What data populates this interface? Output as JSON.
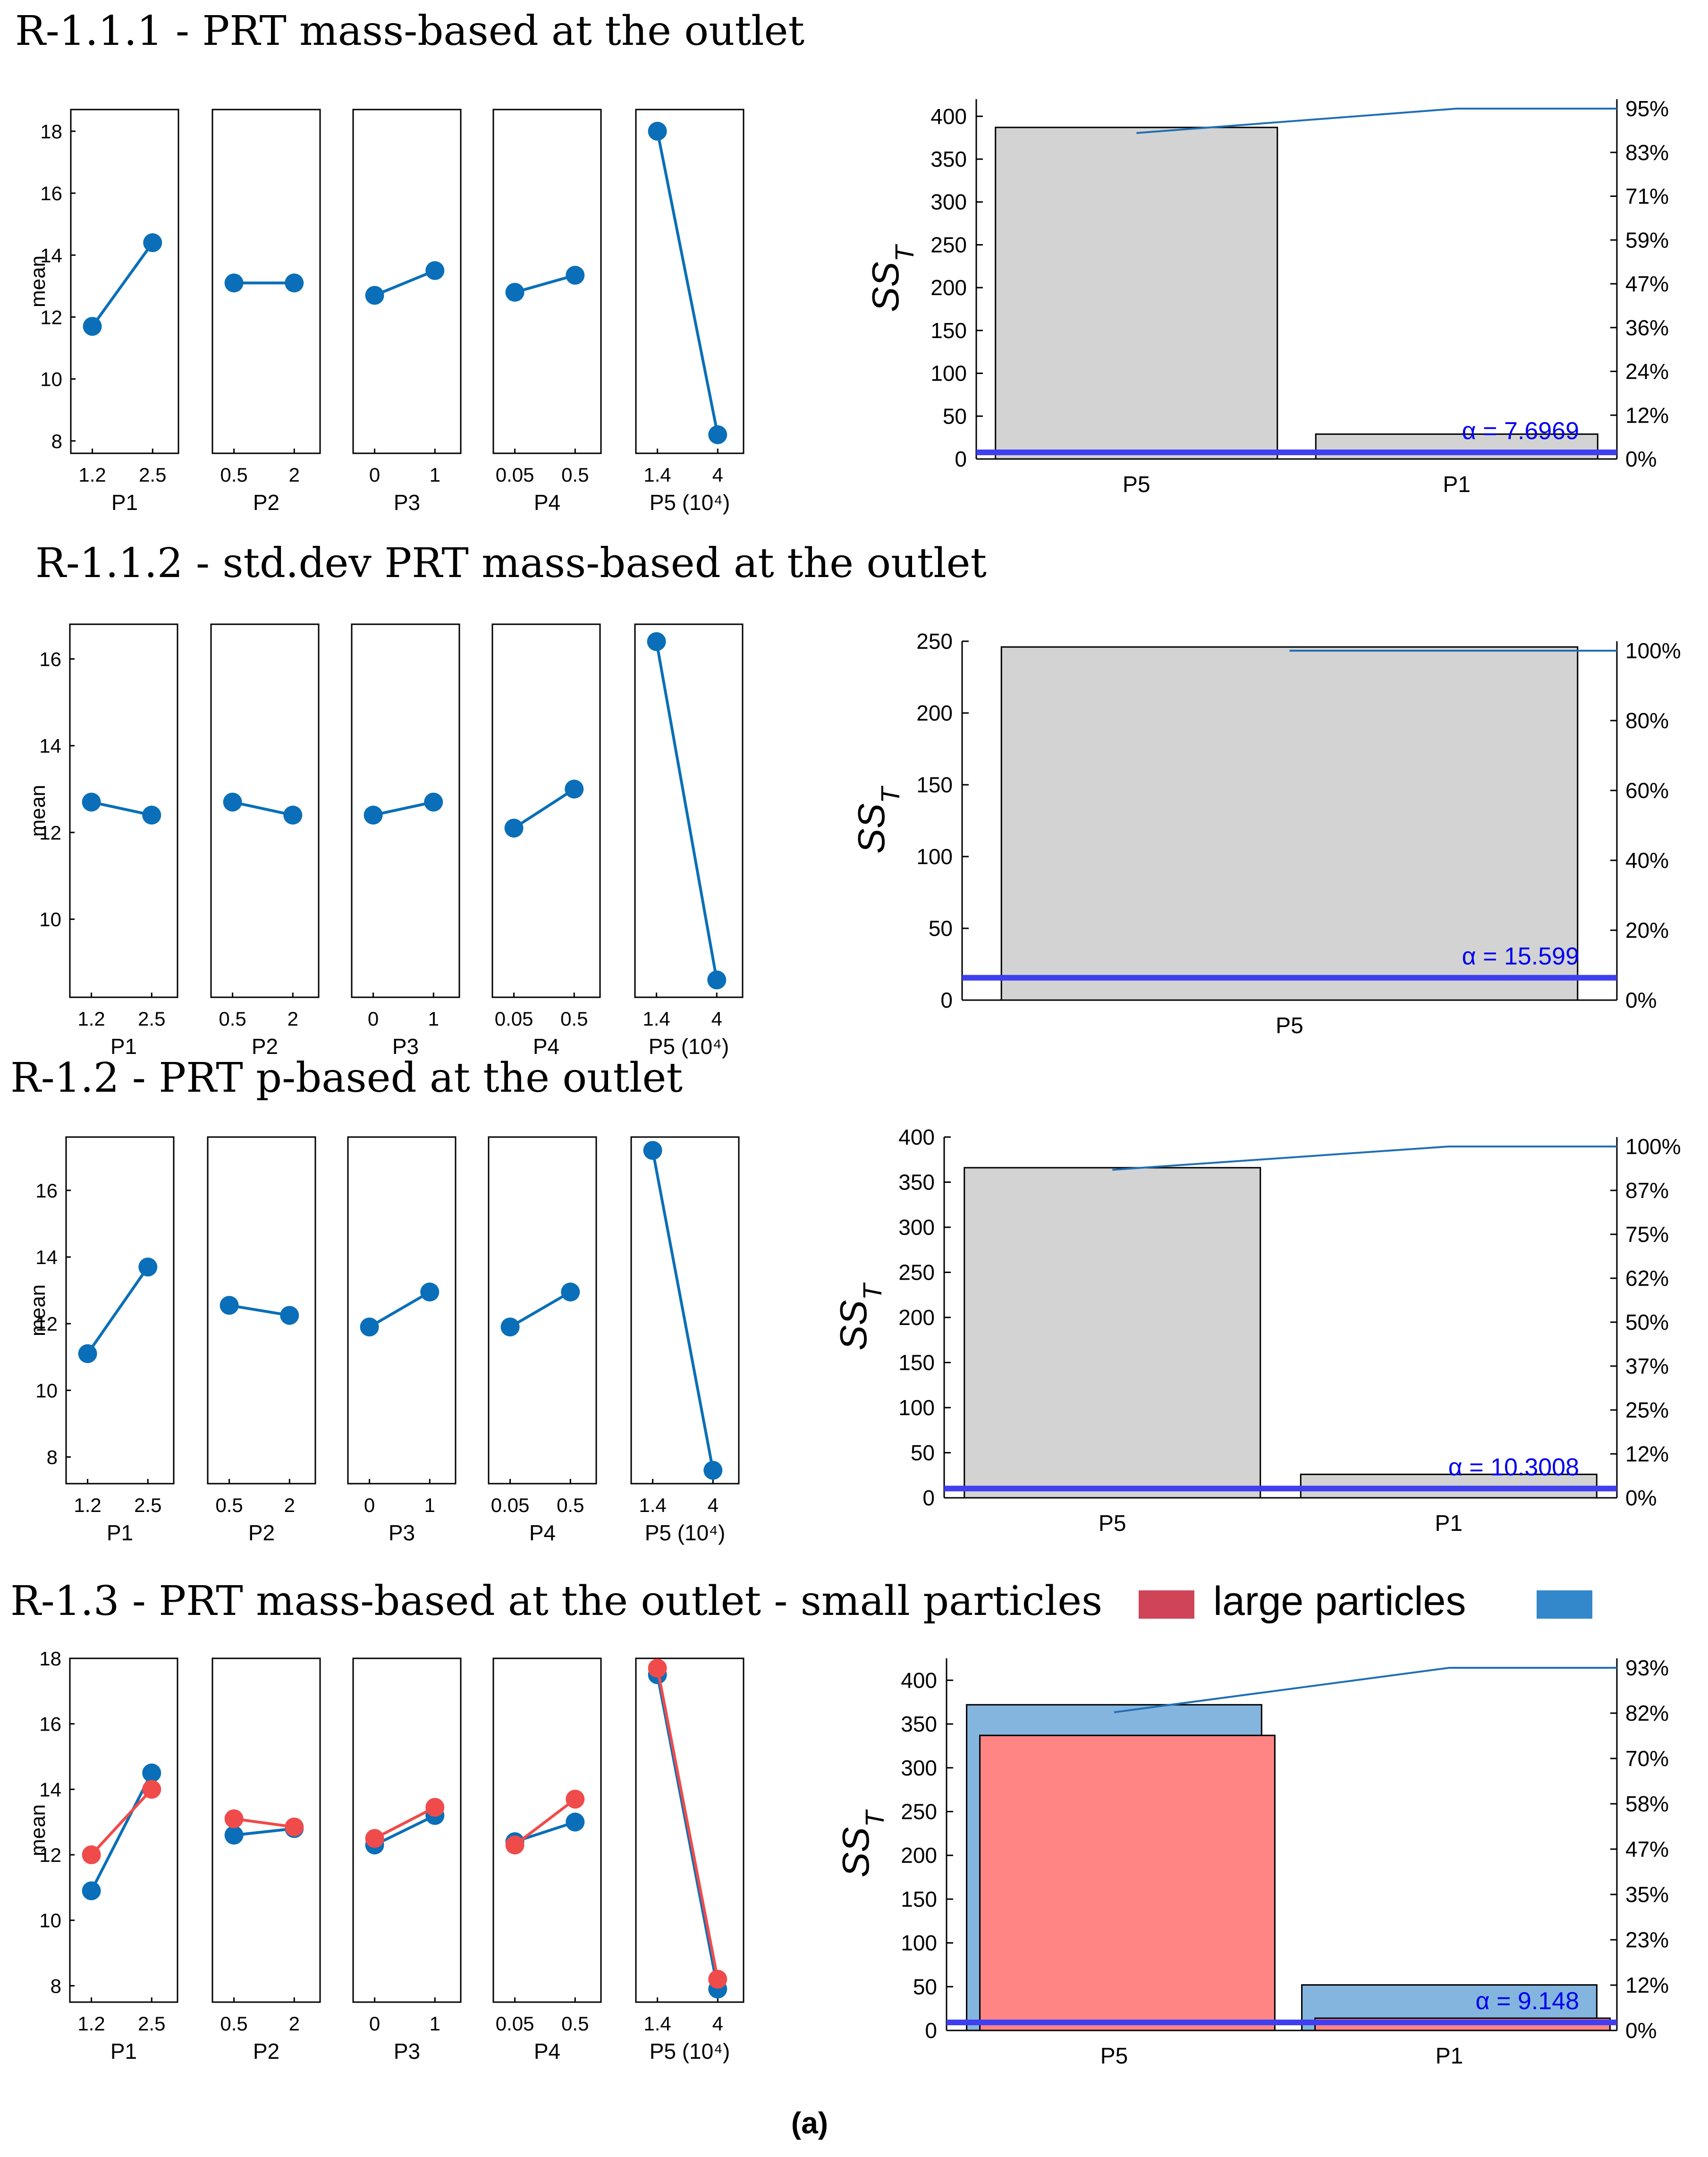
{
  "caption": "(a)",
  "colors": {
    "series_blue": "#0a6fb8",
    "series_red": "#f04b4b",
    "bar_gray": "#d3d3d3",
    "cum_line": "#1f6fb5",
    "alpha_line": "#3f3ff0",
    "alpha_text": "#0000ee",
    "bar_blue": "#84b5de",
    "bar_red": "#ff8585",
    "legend_red": "#d04458",
    "legend_blue": "#3388cc"
  },
  "rows": [
    {
      "title": "R-1.1.1 - PRT mass-based at the outlet",
      "legend": null,
      "main_effects": {
        "type": "line",
        "ylabel": "mean",
        "ylim": [
          7.6,
          18.7
        ],
        "yticks": [
          "8",
          "10",
          "12",
          "14",
          "16",
          "18"
        ],
        "panels": [
          {
            "xlabel": "P1",
            "ticks": [
              "1.2",
              "2.5"
            ],
            "series": [
              {
                "name": "",
                "color": "series_blue",
                "values": [
                  11.7,
                  14.4
                ]
              }
            ]
          },
          {
            "xlabel": "P2",
            "ticks": [
              "0.5",
              "2"
            ],
            "series": [
              {
                "name": "",
                "color": "series_blue",
                "values": [
                  13.1,
                  13.1
                ]
              }
            ]
          },
          {
            "xlabel": "P3",
            "ticks": [
              "0",
              "1"
            ],
            "series": [
              {
                "name": "",
                "color": "series_blue",
                "values": [
                  12.7,
                  13.5
                ]
              }
            ]
          },
          {
            "xlabel": "P4",
            "ticks": [
              "0.05",
              "0.5"
            ],
            "series": [
              {
                "name": "",
                "color": "series_blue",
                "values": [
                  12.8,
                  13.35
                ]
              }
            ]
          },
          {
            "xlabel": "P5 (10⁴)",
            "ticks": [
              "1.4",
              "4"
            ],
            "series": [
              {
                "name": "",
                "color": "series_blue",
                "values": [
                  18.0,
                  8.2
                ]
              }
            ]
          }
        ]
      },
      "pareto": {
        "type": "bar",
        "ylabel": "SS_T",
        "ylim": [
          0,
          420
        ],
        "yticks": [
          "0",
          "50",
          "100",
          "150",
          "200",
          "250",
          "300",
          "350",
          "400"
        ],
        "right_ticks": [
          "0%",
          "12%",
          "24%",
          "36%",
          "47%",
          "59%",
          "71%",
          "83%",
          "95%"
        ],
        "categories": [
          "P5",
          "P1"
        ],
        "bars": [
          {
            "color": "bar_gray",
            "values": [
              387,
              29
            ]
          }
        ],
        "cumulative": [
          387,
          416,
          416
        ],
        "alpha": 7.6969,
        "alpha_label": "α = 7.6969"
      }
    },
    {
      "title": "R-1.1.2 - std.dev PRT mass-based at the outlet",
      "legend": null,
      "main_effects": {
        "type": "line",
        "ylabel": "mean",
        "ylim": [
          8.2,
          16.8
        ],
        "yticks": [
          "10",
          "12",
          "14",
          "16"
        ],
        "panels": [
          {
            "xlabel": "P1",
            "ticks": [
              "1.2",
              "2.5"
            ],
            "series": [
              {
                "name": "",
                "color": "series_blue",
                "values": [
                  12.7,
                  12.4
                ]
              }
            ]
          },
          {
            "xlabel": "P2",
            "ticks": [
              "0.5",
              "2"
            ],
            "series": [
              {
                "name": "",
                "color": "series_blue",
                "values": [
                  12.7,
                  12.4
                ]
              }
            ]
          },
          {
            "xlabel": "P3",
            "ticks": [
              "0",
              "1"
            ],
            "series": [
              {
                "name": "",
                "color": "series_blue",
                "values": [
                  12.4,
                  12.7
                ]
              }
            ]
          },
          {
            "xlabel": "P4",
            "ticks": [
              "0.05",
              "0.5"
            ],
            "series": [
              {
                "name": "",
                "color": "series_blue",
                "values": [
                  12.1,
                  13.0
                ]
              }
            ]
          },
          {
            "xlabel": "P5 (10⁴)",
            "ticks": [
              "1.4",
              "4"
            ],
            "series": [
              {
                "name": "",
                "color": "series_blue",
                "values": [
                  16.4,
                  8.6
                ]
              }
            ]
          }
        ]
      },
      "pareto": {
        "type": "bar",
        "ylabel": "SS_T",
        "ylim": [
          0,
          250
        ],
        "yticks": [
          "0",
          "50",
          "100",
          "150",
          "200",
          "250"
        ],
        "right_ticks": [
          "0%",
          "20%",
          "40%",
          "60%",
          "80%",
          "100%"
        ],
        "categories": [
          "P5"
        ],
        "bars": [
          {
            "color": "bar_gray",
            "values": [
              246
            ]
          }
        ],
        "cumulative": [
          246,
          246
        ],
        "alpha": 15.599,
        "alpha_label": "α = 15.599"
      }
    },
    {
      "title": "R-1.2 - PRT p-based at the outlet",
      "legend": null,
      "main_effects": {
        "type": "line",
        "ylabel": "mean",
        "ylim": [
          7.2,
          17.6
        ],
        "yticks": [
          "8",
          "10",
          "12",
          "14",
          "16"
        ],
        "panels": [
          {
            "xlabel": "P1",
            "ticks": [
              "1.2",
              "2.5"
            ],
            "series": [
              {
                "name": "",
                "color": "series_blue",
                "values": [
                  11.1,
                  13.7
                ]
              }
            ]
          },
          {
            "xlabel": "P2",
            "ticks": [
              "0.5",
              "2"
            ],
            "series": [
              {
                "name": "",
                "color": "series_blue",
                "values": [
                  12.55,
                  12.25
                ]
              }
            ]
          },
          {
            "xlabel": "P3",
            "ticks": [
              "0",
              "1"
            ],
            "series": [
              {
                "name": "",
                "color": "series_blue",
                "values": [
                  11.9,
                  12.95
                ]
              }
            ]
          },
          {
            "xlabel": "P4",
            "ticks": [
              "0.05",
              "0.5"
            ],
            "series": [
              {
                "name": "",
                "color": "series_blue",
                "values": [
                  11.9,
                  12.95
                ]
              }
            ]
          },
          {
            "xlabel": "P5 (10⁴)",
            "ticks": [
              "1.4",
              "4"
            ],
            "series": [
              {
                "name": "",
                "color": "series_blue",
                "values": [
                  17.2,
                  7.6
                ]
              }
            ]
          }
        ]
      },
      "pareto": {
        "type": "bar",
        "ylabel": "SS_T",
        "ylim": [
          0,
          400
        ],
        "yticks": [
          "0",
          "50",
          "100",
          "150",
          "200",
          "250",
          "300",
          "350",
          "400"
        ],
        "right_ticks": [
          "0%",
          "12%",
          "25%",
          "37%",
          "50%",
          "62%",
          "75%",
          "87%",
          "100%"
        ],
        "categories": [
          "P5",
          "P1"
        ],
        "bars": [
          {
            "color": "bar_gray",
            "values": [
              366,
              26
            ]
          }
        ],
        "cumulative": [
          366,
          392,
          392
        ],
        "alpha": 10.3008,
        "alpha_label": "α = 10.3008"
      }
    },
    {
      "title": "R-1.3 - PRT mass-based at the outlet - small particles",
      "legend": [
        {
          "label": "",
          "color": "legend_red"
        },
        {
          "label": "large particles",
          "color": "legend_blue"
        }
      ],
      "main_effects": {
        "type": "line",
        "ylabel": "mean",
        "ylim": [
          7.5,
          18.0
        ],
        "yticks": [
          "8",
          "10",
          "12",
          "14",
          "16",
          "18"
        ],
        "panels": [
          {
            "xlabel": "P1",
            "ticks": [
              "1.2",
              "2.5"
            ],
            "series": [
              {
                "name": "large particles",
                "color": "series_blue",
                "values": [
                  10.9,
                  14.5
                ]
              },
              {
                "name": "small particles",
                "color": "series_red",
                "values": [
                  12.0,
                  14.0
                ]
              }
            ]
          },
          {
            "xlabel": "P2",
            "ticks": [
              "0.5",
              "2"
            ],
            "series": [
              {
                "name": "large particles",
                "color": "series_blue",
                "values": [
                  12.6,
                  12.8
                ]
              },
              {
                "name": "small particles",
                "color": "series_red",
                "values": [
                  13.1,
                  12.85
                ]
              }
            ]
          },
          {
            "xlabel": "P3",
            "ticks": [
              "0",
              "1"
            ],
            "series": [
              {
                "name": "large particles",
                "color": "series_blue",
                "values": [
                  12.3,
                  13.2
                ]
              },
              {
                "name": "small particles",
                "color": "series_red",
                "values": [
                  12.5,
                  13.45
                ]
              }
            ]
          },
          {
            "xlabel": "P4",
            "ticks": [
              "0.05",
              "0.5"
            ],
            "series": [
              {
                "name": "large particles",
                "color": "series_blue",
                "values": [
                  12.4,
                  13.0
                ]
              },
              {
                "name": "small particles",
                "color": "series_red",
                "values": [
                  12.3,
                  13.7
                ]
              }
            ]
          },
          {
            "xlabel": "P5 (10⁴)",
            "ticks": [
              "1.4",
              "4"
            ],
            "series": [
              {
                "name": "large particles",
                "color": "series_blue",
                "values": [
                  17.5,
                  7.9
                ]
              },
              {
                "name": "small particles",
                "color": "series_red",
                "values": [
                  17.7,
                  8.2
                ]
              }
            ]
          }
        ]
      },
      "pareto": {
        "type": "bar",
        "ylabel": "SS_T",
        "ylim": [
          0,
          425
        ],
        "yticks": [
          "0",
          "50",
          "100",
          "150",
          "200",
          "250",
          "300",
          "350",
          "400"
        ],
        "right_ticks": [
          "0%",
          "12%",
          "23%",
          "35%",
          "47%",
          "58%",
          "70%",
          "82%",
          "93%"
        ],
        "categories": [
          "P5",
          "P1"
        ],
        "bars": [
          {
            "color": "bar_blue",
            "values": [
              372,
              52
            ]
          },
          {
            "color": "bar_red",
            "values": [
              337,
              14
            ]
          }
        ],
        "cumulative": [
          372,
          424,
          424
        ],
        "alpha": 9.148,
        "alpha_label": "α = 9.148"
      }
    }
  ]
}
